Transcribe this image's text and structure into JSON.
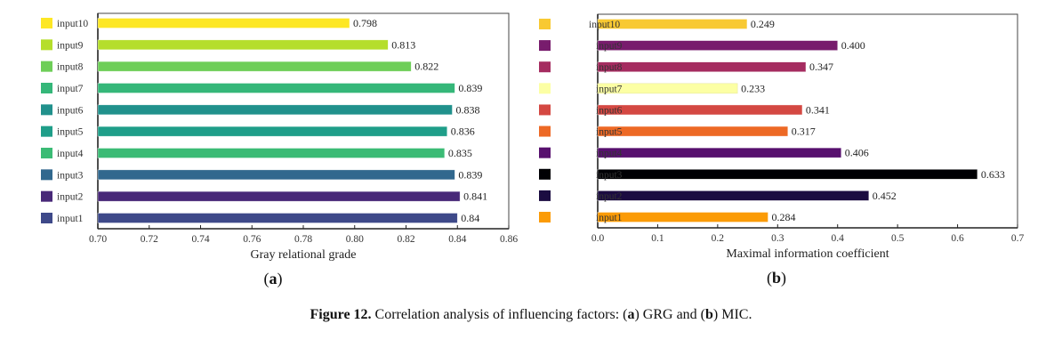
{
  "caption": {
    "prefix": "Figure 12.",
    "text_1": " Correlation analysis of influencing factors: (",
    "a": "a",
    "text_2": ") GRG and (",
    "b": "b",
    "text_3": ") MIC."
  },
  "chart_data": [
    {
      "type": "bar",
      "orientation": "horizontal",
      "panel_label": "a",
      "title": "",
      "xlabel": "Gray relational grade",
      "ylabel": "",
      "xlim": [
        0.7,
        0.86
      ],
      "xticks": [
        "0.70",
        "0.72",
        "0.74",
        "0.76",
        "0.78",
        "0.80",
        "0.82",
        "0.84",
        "0.86"
      ],
      "xtick_values": [
        0.7,
        0.72,
        0.74,
        0.76,
        0.78,
        0.8,
        0.82,
        0.84,
        0.86
      ],
      "grid": false,
      "legend": "left",
      "categories": [
        "input10",
        "input9",
        "input8",
        "input7",
        "input6",
        "input5",
        "input4",
        "input3",
        "input2",
        "input1"
      ],
      "values": [
        0.798,
        0.813,
        0.822,
        0.839,
        0.838,
        0.836,
        0.835,
        0.839,
        0.841,
        0.84
      ],
      "value_labels": [
        "0.798",
        "0.813",
        "0.822",
        "0.839",
        "0.838",
        "0.836",
        "0.835",
        "0.839",
        "0.841",
        "0.84"
      ],
      "colors": [
        "#fde725",
        "#b5de2b",
        "#6ece58",
        "#35b779",
        "#21918c",
        "#1f9e89",
        "#3bbb75",
        "#31688e",
        "#482878",
        "#3e4989"
      ]
    },
    {
      "type": "bar",
      "orientation": "horizontal",
      "panel_label": "b",
      "title": "",
      "xlabel": "Maximal information coefficient",
      "ylabel": "",
      "xlim": [
        0.0,
        0.7
      ],
      "xticks": [
        "0.0",
        "0.1",
        "0.2",
        "0.3",
        "0.4",
        "0.5",
        "0.6",
        "0.7"
      ],
      "xtick_values": [
        0.0,
        0.1,
        0.2,
        0.3,
        0.4,
        0.5,
        0.6,
        0.7
      ],
      "grid": false,
      "legend": "left",
      "categories": [
        "input10",
        "input9",
        "input8",
        "input7",
        "input6",
        "input5",
        "input4",
        "input3",
        "input2",
        "input1"
      ],
      "values": [
        0.249,
        0.4,
        0.347,
        0.233,
        0.341,
        0.317,
        0.406,
        0.633,
        0.452,
        0.284
      ],
      "value_labels": [
        "0.249",
        "0.400",
        "0.347",
        "0.233",
        "0.341",
        "0.317",
        "0.406",
        "0.633",
        "0.452",
        "0.284"
      ],
      "colors": [
        "#f8c932",
        "#781c6d",
        "#a52c60",
        "#fcffa4",
        "#d44842",
        "#ed6925",
        "#57106e",
        "#000004",
        "#1b0c41",
        "#fb9b06"
      ]
    }
  ]
}
